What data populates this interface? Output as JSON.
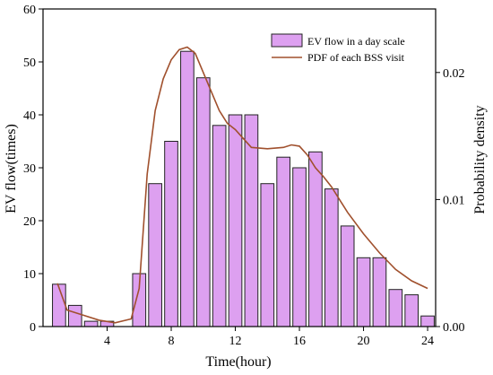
{
  "chart_data": {
    "type": "bar",
    "title": "",
    "xlabel": "Time(hour)",
    "ylabel": "EV flow(times)",
    "y2label": "Probability density",
    "xlim": [
      0,
      24.5
    ],
    "ylim": [
      0,
      60
    ],
    "y2lim": [
      0,
      0.025
    ],
    "x_ticks": [
      4,
      8,
      12,
      16,
      20,
      24
    ],
    "y_ticks": [
      0,
      10,
      20,
      30,
      40,
      50,
      60
    ],
    "y2_ticks": [
      0.0,
      0.01,
      0.02
    ],
    "y2_tick_labels": [
      "0.00",
      "0.01",
      "0.02"
    ],
    "grid": false,
    "legend_position": "top-right",
    "colors": {
      "bar_fill": "#dda0f0",
      "bar_stroke": "#222222",
      "pdf_line": "#a0502d",
      "axis": "#000000"
    },
    "bars": {
      "name": "EV flow in a day scale",
      "x": [
        1,
        2,
        3,
        4,
        5,
        6,
        7,
        8,
        9,
        10,
        11,
        12,
        13,
        14,
        15,
        16,
        17,
        18,
        19,
        20,
        21,
        22,
        23,
        24
      ],
      "values": [
        8,
        4,
        1,
        1,
        0,
        10,
        27,
        35,
        52,
        47,
        38,
        40,
        40,
        27,
        32,
        30,
        33,
        26,
        19,
        13,
        13,
        7,
        6,
        2
      ]
    },
    "pdf": {
      "name": "PDF of each BSS visit",
      "points": [
        [
          0.9,
          0.0034
        ],
        [
          1.5,
          0.0013
        ],
        [
          2.5,
          0.0009
        ],
        [
          3.5,
          0.0005
        ],
        [
          4.5,
          0.0003
        ],
        [
          5.5,
          0.0006
        ],
        [
          6.0,
          0.003
        ],
        [
          6.5,
          0.012
        ],
        [
          7.0,
          0.017
        ],
        [
          7.5,
          0.0195
        ],
        [
          8.0,
          0.021
        ],
        [
          8.5,
          0.0218
        ],
        [
          9.0,
          0.022
        ],
        [
          9.5,
          0.0215
        ],
        [
          10.0,
          0.02
        ],
        [
          10.5,
          0.0185
        ],
        [
          11.0,
          0.017
        ],
        [
          11.5,
          0.016
        ],
        [
          12.0,
          0.0155
        ],
        [
          12.5,
          0.0148
        ],
        [
          13.0,
          0.0141
        ],
        [
          14.0,
          0.014
        ],
        [
          15.0,
          0.0141
        ],
        [
          15.5,
          0.0143
        ],
        [
          16.0,
          0.0142
        ],
        [
          16.5,
          0.0135
        ],
        [
          17.0,
          0.0125
        ],
        [
          17.5,
          0.0118
        ],
        [
          18.0,
          0.011
        ],
        [
          19.0,
          0.009
        ],
        [
          20.0,
          0.0073
        ],
        [
          21.0,
          0.0058
        ],
        [
          22.0,
          0.0045
        ],
        [
          23.0,
          0.0036
        ],
        [
          24.0,
          0.003
        ]
      ]
    }
  }
}
